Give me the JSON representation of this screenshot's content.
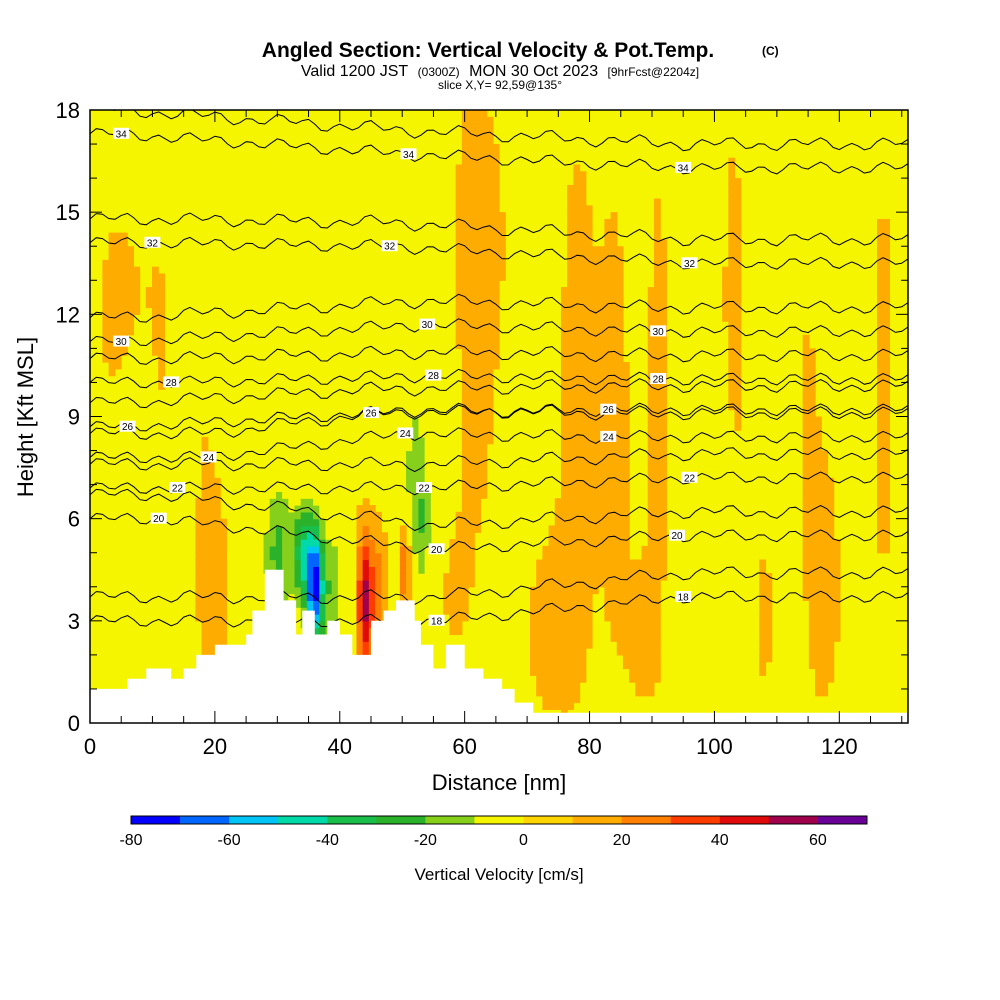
{
  "chart_data": {
    "type": "heatmap",
    "title": "Angled Section: Vertical Velocity & Pot.Temp.",
    "title_suffix": "(C)",
    "subtitle_parts": [
      "Valid 1200 JST",
      "(0300Z)",
      "MON 30 Oct 2023",
      "[9hrFcst@2204z]"
    ],
    "slice_text": "slice X,Y= 92,59@135°",
    "xlabel": "Distance [nm]",
    "ylabel": "Height [Kft MSL]",
    "xlim": [
      0,
      131
    ],
    "ylim": [
      0,
      18
    ],
    "x_ticks": [
      0,
      20,
      40,
      60,
      80,
      100,
      120
    ],
    "y_ticks": [
      0,
      3,
      6,
      9,
      12,
      15,
      18
    ],
    "grid": false,
    "colorbar": {
      "title": "Vertical Velocity [cm/s]",
      "min": -80,
      "max": 70,
      "step": 10,
      "tick_values": [
        -80,
        -60,
        -40,
        -20,
        0,
        20,
        40,
        60
      ],
      "colors": [
        "#0000ff",
        "#0066ff",
        "#00c4f5",
        "#00d9a8",
        "#19bf4a",
        "#2ab22a",
        "#86d01c",
        "#f5f500",
        "#ffd500",
        "#ffac00",
        "#ff7f00",
        "#ff3c00",
        "#e00a0a",
        "#a0004c",
        "#6a0098"
      ]
    },
    "background_level": "0 to 10",
    "terrain_height_kft": [
      [
        0,
        1.0
      ],
      [
        6,
        1.0
      ],
      [
        6,
        1.3
      ],
      [
        9,
        1.3
      ],
      [
        9,
        1.6
      ],
      [
        13,
        1.6
      ],
      [
        13,
        1.3
      ],
      [
        15,
        1.3
      ],
      [
        15,
        1.6
      ],
      [
        17,
        1.6
      ],
      [
        17,
        2.0
      ],
      [
        20,
        2.0
      ],
      [
        20,
        2.3
      ],
      [
        25,
        2.3
      ],
      [
        25,
        2.6
      ],
      [
        26,
        2.6
      ],
      [
        26,
        3.3
      ],
      [
        28,
        3.3
      ],
      [
        28,
        4.5
      ],
      [
        31,
        4.5
      ],
      [
        31,
        3.6
      ],
      [
        33,
        3.6
      ],
      [
        33,
        2.6
      ],
      [
        34,
        2.6
      ],
      [
        34,
        3.3
      ],
      [
        36,
        3.3
      ],
      [
        36,
        2.6
      ],
      [
        38,
        2.6
      ],
      [
        38,
        3.0
      ],
      [
        40,
        3.0
      ],
      [
        40,
        2.6
      ],
      [
        42,
        2.6
      ],
      [
        42,
        2.0
      ],
      [
        45,
        2.0
      ],
      [
        45,
        3.0
      ],
      [
        47,
        3.0
      ],
      [
        47,
        3.3
      ],
      [
        49,
        3.3
      ],
      [
        49,
        3.6
      ],
      [
        52,
        3.6
      ],
      [
        52,
        3.0
      ],
      [
        53,
        3.0
      ],
      [
        53,
        2.3
      ],
      [
        55,
        2.3
      ],
      [
        55,
        1.6
      ],
      [
        57,
        1.6
      ],
      [
        57,
        2.3
      ],
      [
        60,
        2.3
      ],
      [
        60,
        1.6
      ],
      [
        63,
        1.6
      ],
      [
        63,
        1.3
      ],
      [
        66,
        1.3
      ],
      [
        66,
        1.0
      ],
      [
        68,
        1.0
      ],
      [
        68,
        0.6
      ],
      [
        71,
        0.6
      ],
      [
        71,
        0.3
      ],
      [
        131,
        0.3
      ]
    ],
    "velocity_features": [
      {
        "x": [
          29,
          34
        ],
        "z": [
          3.3,
          6.0
        ],
        "level": "-40 to -30"
      },
      {
        "x": [
          35.5,
          38
        ],
        "z": [
          3.3,
          4.5
        ],
        "level": "-80 to -70"
      },
      {
        "x": [
          38,
          41
        ],
        "z": [
          2.6,
          5.0
        ],
        "level": "-30 to -20"
      },
      {
        "x": [
          43,
          45.5
        ],
        "z": [
          2.3,
          5.0
        ],
        "level": "40 to 50"
      },
      {
        "x": [
          52,
          54
        ],
        "z": [
          4.0,
          8.5
        ],
        "level": "-30 to -20"
      },
      {
        "x": [
          69,
          74
        ],
        "z": [
          8.0,
          18.0
        ],
        "level": "-10 to 0"
      },
      {
        "x": [
          97,
          101
        ],
        "z": [
          6.5,
          9.5
        ],
        "level": "-10 to 0"
      }
    ],
    "contour_labels": [
      {
        "value": "34",
        "x": 5,
        "z": 17.3
      },
      {
        "value": "34",
        "x": 51,
        "z": 16.7
      },
      {
        "value": "34",
        "x": 95,
        "z": 16.3
      },
      {
        "value": "32",
        "x": 10,
        "z": 14.1
      },
      {
        "value": "32",
        "x": 48,
        "z": 14.0
      },
      {
        "value": "32",
        "x": 96,
        "z": 13.5
      },
      {
        "value": "30",
        "x": 5,
        "z": 11.2
      },
      {
        "value": "30",
        "x": 54,
        "z": 11.7
      },
      {
        "value": "30",
        "x": 91,
        "z": 11.5
      },
      {
        "value": "28",
        "x": 13,
        "z": 10.0
      },
      {
        "value": "28",
        "x": 55,
        "z": 10.2
      },
      {
        "value": "28",
        "x": 91,
        "z": 10.1
      },
      {
        "value": "26",
        "x": 6,
        "z": 8.7
      },
      {
        "value": "26",
        "x": 45,
        "z": 9.1
      },
      {
        "value": "26",
        "x": 83,
        "z": 9.2
      },
      {
        "value": "24",
        "x": 19,
        "z": 7.8
      },
      {
        "value": "24",
        "x": 50.5,
        "z": 8.5
      },
      {
        "value": "24",
        "x": 83,
        "z": 8.4
      },
      {
        "value": "22",
        "x": 14,
        "z": 6.9
      },
      {
        "value": "22",
        "x": 53.5,
        "z": 6.9
      },
      {
        "value": "22",
        "x": 96,
        "z": 7.2
      },
      {
        "value": "20",
        "x": 11,
        "z": 6.0
      },
      {
        "value": "20",
        "x": 55.5,
        "z": 5.1
      },
      {
        "value": "20",
        "x": 94,
        "z": 5.5
      },
      {
        "value": "18",
        "x": 55.5,
        "z": 3.0
      },
      {
        "value": "18",
        "x": 95,
        "z": 3.7
      }
    ]
  }
}
